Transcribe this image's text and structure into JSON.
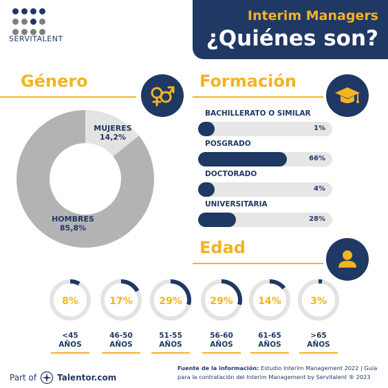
{
  "brand": {
    "logo_text": "SERVITALENT"
  },
  "header": {
    "subtitle": "Interim Managers",
    "title": "¿Quiénes son?"
  },
  "genero": {
    "title": "Género",
    "icon": "gender-symbols-icon",
    "segments": [
      {
        "label": "MUJERES",
        "value": "14,2%",
        "pct": 14.2,
        "color": "#e3e3e3"
      },
      {
        "label": "HOMBRES",
        "value": "85,8%",
        "pct": 85.8,
        "color": "#b3b3b3"
      }
    ]
  },
  "formacion": {
    "title": "Formación",
    "icon": "graduation-cap-icon",
    "items": [
      {
        "label": "BACHILLERATO O SIMILAR",
        "value": "1%",
        "fraction": 0.01
      },
      {
        "label": "POSGRADO",
        "value": "66%",
        "fraction": 0.66
      },
      {
        "label": "DOCTORADO",
        "value": "4%",
        "fraction": 0.04
      },
      {
        "label": "UNIVERSITARIA",
        "value": "28%",
        "fraction": 0.28
      }
    ]
  },
  "edad": {
    "title": "Edad",
    "icon": "person-icon",
    "items": [
      {
        "value": "8%",
        "fraction": 0.08,
        "line1": "<45",
        "line2": "AÑOS"
      },
      {
        "value": "17%",
        "fraction": 0.17,
        "line1": "46-50",
        "line2": "AÑOS"
      },
      {
        "value": "29%",
        "fraction": 0.29,
        "line1": "51-55",
        "line2": "AÑOS"
      },
      {
        "value": "29%",
        "fraction": 0.29,
        "line1": "56-60",
        "line2": "AÑOS"
      },
      {
        "value": "14%",
        "fraction": 0.14,
        "line1": "61-65",
        "line2": "AÑOS"
      },
      {
        "value": "3%",
        "fraction": 0.03,
        "line1": ">65",
        "line2": "AÑOS"
      }
    ]
  },
  "colors": {
    "navy": "#1f3864",
    "gold": "#f4b322",
    "track": "#e6e6e6"
  },
  "footer": {
    "part_of": "Part of",
    "company": "Talentor.com",
    "source_label": "Fuente de la información:",
    "source_text": " Estudio Interim Management 2022 | Guía para la contratación del Interim Management by Servitalent ® 2023"
  }
}
